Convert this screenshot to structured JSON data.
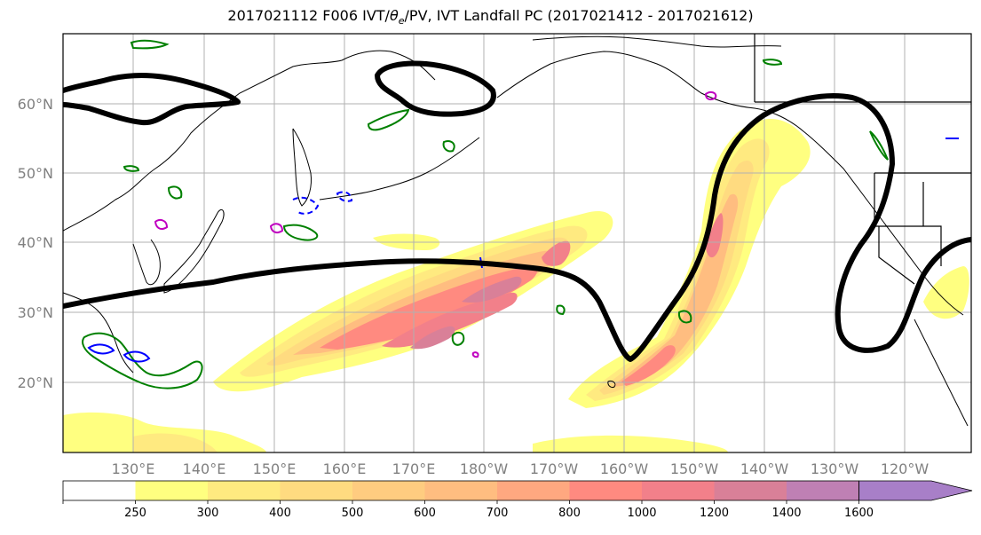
{
  "title_parts": {
    "prefix": "2017021112 F006 IVT/",
    "theta": "θ",
    "theta_sub": "e",
    "suffix": "/PV, IVT Landfall PC (2017021412 - 2017021612)"
  },
  "lat_labels": [
    "60°N",
    "50°N",
    "40°N",
    "30°N",
    "20°N"
  ],
  "lon_labels": [
    "130°E",
    "140°E",
    "150°E",
    "160°E",
    "170°E",
    "180°W",
    "170°W",
    "160°W",
    "150°W",
    "140°W",
    "130°W",
    "120°W"
  ],
  "colorbar": {
    "levels": [
      "250",
      "300",
      "400",
      "500",
      "600",
      "700",
      "800",
      "1000",
      "1200",
      "1400",
      "1600"
    ],
    "colors": [
      "#ffffff",
      "#ffff80",
      "#ffea80",
      "#ffdb80",
      "#ffcc80",
      "#ffbd80",
      "#ffa880",
      "#ff8a80",
      "#f2808a",
      "#d98098",
      "#bf80b4",
      "#a87fc8"
    ]
  },
  "contour_colors": {
    "pc": "#000000",
    "pv_green": "#008000",
    "pv_blue": "#0000ff",
    "pv_magenta": "#c000c0"
  }
}
